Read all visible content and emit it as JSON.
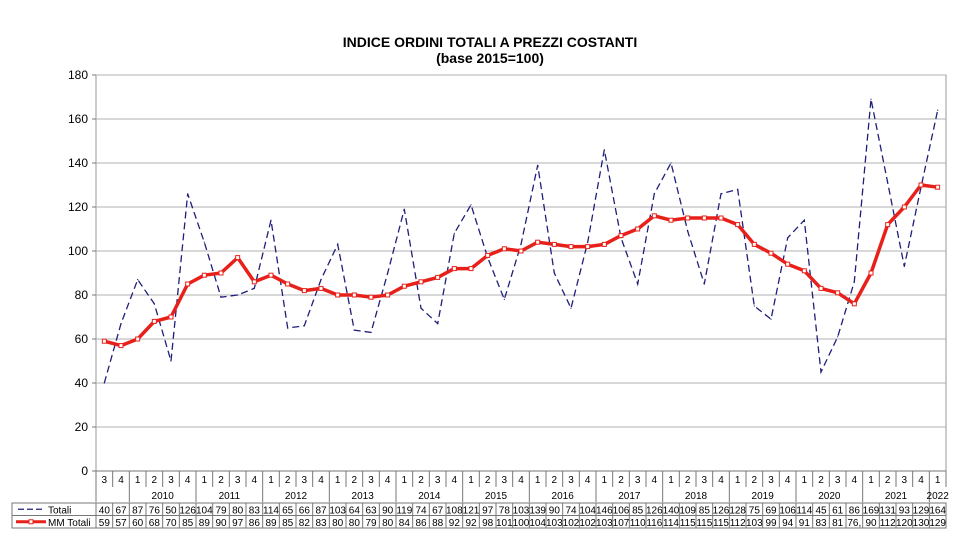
{
  "chart_data": {
    "type": "line",
    "title": "INDICE ORDINI TOTALI A PREZZI COSTANTI",
    "subtitle": "(base 2015=100)",
    "ylim": [
      0,
      180
    ],
    "yticks": [
      0,
      20,
      40,
      60,
      80,
      100,
      120,
      140,
      160,
      180
    ],
    "grid": true,
    "quarters": [
      "3",
      "4",
      "1",
      "2",
      "3",
      "4",
      "1",
      "2",
      "3",
      "4",
      "1",
      "2",
      "3",
      "4",
      "1",
      "2",
      "3",
      "4",
      "1",
      "2",
      "3",
      "4",
      "1",
      "2",
      "3",
      "4",
      "1",
      "2",
      "3",
      "4",
      "1",
      "2",
      "3",
      "4",
      "1",
      "2",
      "3",
      "4",
      "1",
      "2",
      "3",
      "4",
      "1",
      "2",
      "3",
      "4",
      "1",
      "2",
      "3",
      "4",
      "1"
    ],
    "years": [
      {
        "label": "2010",
        "start": 2,
        "end": 5
      },
      {
        "label": "2011",
        "start": 6,
        "end": 9
      },
      {
        "label": "2012",
        "start": 10,
        "end": 13
      },
      {
        "label": "2013",
        "start": 14,
        "end": 17
      },
      {
        "label": "2014",
        "start": 18,
        "end": 21
      },
      {
        "label": "2015",
        "start": 22,
        "end": 25
      },
      {
        "label": "2016",
        "start": 26,
        "end": 29
      },
      {
        "label": "2017",
        "start": 30,
        "end": 33
      },
      {
        "label": "2018",
        "start": 34,
        "end": 37
      },
      {
        "label": "2019",
        "start": 38,
        "end": 41
      },
      {
        "label": "2020",
        "start": 42,
        "end": 45
      },
      {
        "label": "2021",
        "start": 46,
        "end": 49
      },
      {
        "label": "2022",
        "start": 50,
        "end": 50
      }
    ],
    "series": [
      {
        "name": "Totali",
        "color": "#1f1f7a",
        "style": "dashed",
        "values": [
          40,
          67,
          87,
          76,
          50,
          126,
          104,
          79,
          80,
          83,
          114,
          65,
          66,
          87,
          103,
          64,
          63,
          90,
          119,
          74,
          67,
          108,
          121,
          97,
          78,
          103,
          139,
          90,
          74,
          104,
          146,
          106,
          85,
          126,
          140,
          109,
          85,
          126,
          128,
          75,
          69,
          106,
          114,
          45,
          61,
          86,
          169,
          131,
          93,
          129,
          164
        ],
        "table": [
          "40",
          "67",
          "87",
          "76",
          "50",
          "126",
          "104",
          "79",
          "80",
          "83",
          "114",
          "65",
          "66",
          "87",
          "103",
          "64",
          "63",
          "90",
          "119",
          "74",
          "67",
          "108",
          "121",
          "97",
          "78",
          "103",
          "139",
          "90",
          "74",
          "104",
          "146",
          "106",
          "85",
          "126",
          "140",
          "109",
          "85",
          "126",
          "128",
          "75",
          "69",
          "106",
          "114",
          "45",
          "61",
          "86",
          "169",
          "131",
          "93",
          "129",
          "164"
        ]
      },
      {
        "name": "MM Totali",
        "color": "#e8201a",
        "style": "solid-markers",
        "values": [
          59,
          57,
          60,
          68,
          70,
          85,
          89,
          90,
          97,
          86,
          89,
          85,
          82,
          83,
          80,
          80,
          79,
          80,
          84,
          86,
          88,
          92,
          92,
          98,
          101,
          100,
          104,
          103,
          102,
          102,
          103,
          107,
          110,
          116,
          114,
          115,
          115,
          115,
          112,
          103,
          99,
          94,
          91,
          83,
          81,
          76,
          90,
          112,
          120,
          130,
          129
        ],
        "table": [
          "59",
          "57",
          "60",
          "68",
          "70",
          "85",
          "89",
          "90",
          "97",
          "86",
          "89",
          "85",
          "82",
          "83",
          "80",
          "80",
          "79",
          "80",
          "84",
          "86",
          "88",
          "92",
          "92",
          "98",
          "101",
          "100",
          "104",
          "103",
          "102",
          "102",
          "103",
          "107",
          "110",
          "116",
          "114",
          "115",
          "115",
          "115",
          "112",
          "103",
          "99",
          "94",
          "91",
          "83",
          "81",
          "76,",
          "90",
          "112",
          "120",
          "130",
          "129"
        ]
      }
    ]
  }
}
